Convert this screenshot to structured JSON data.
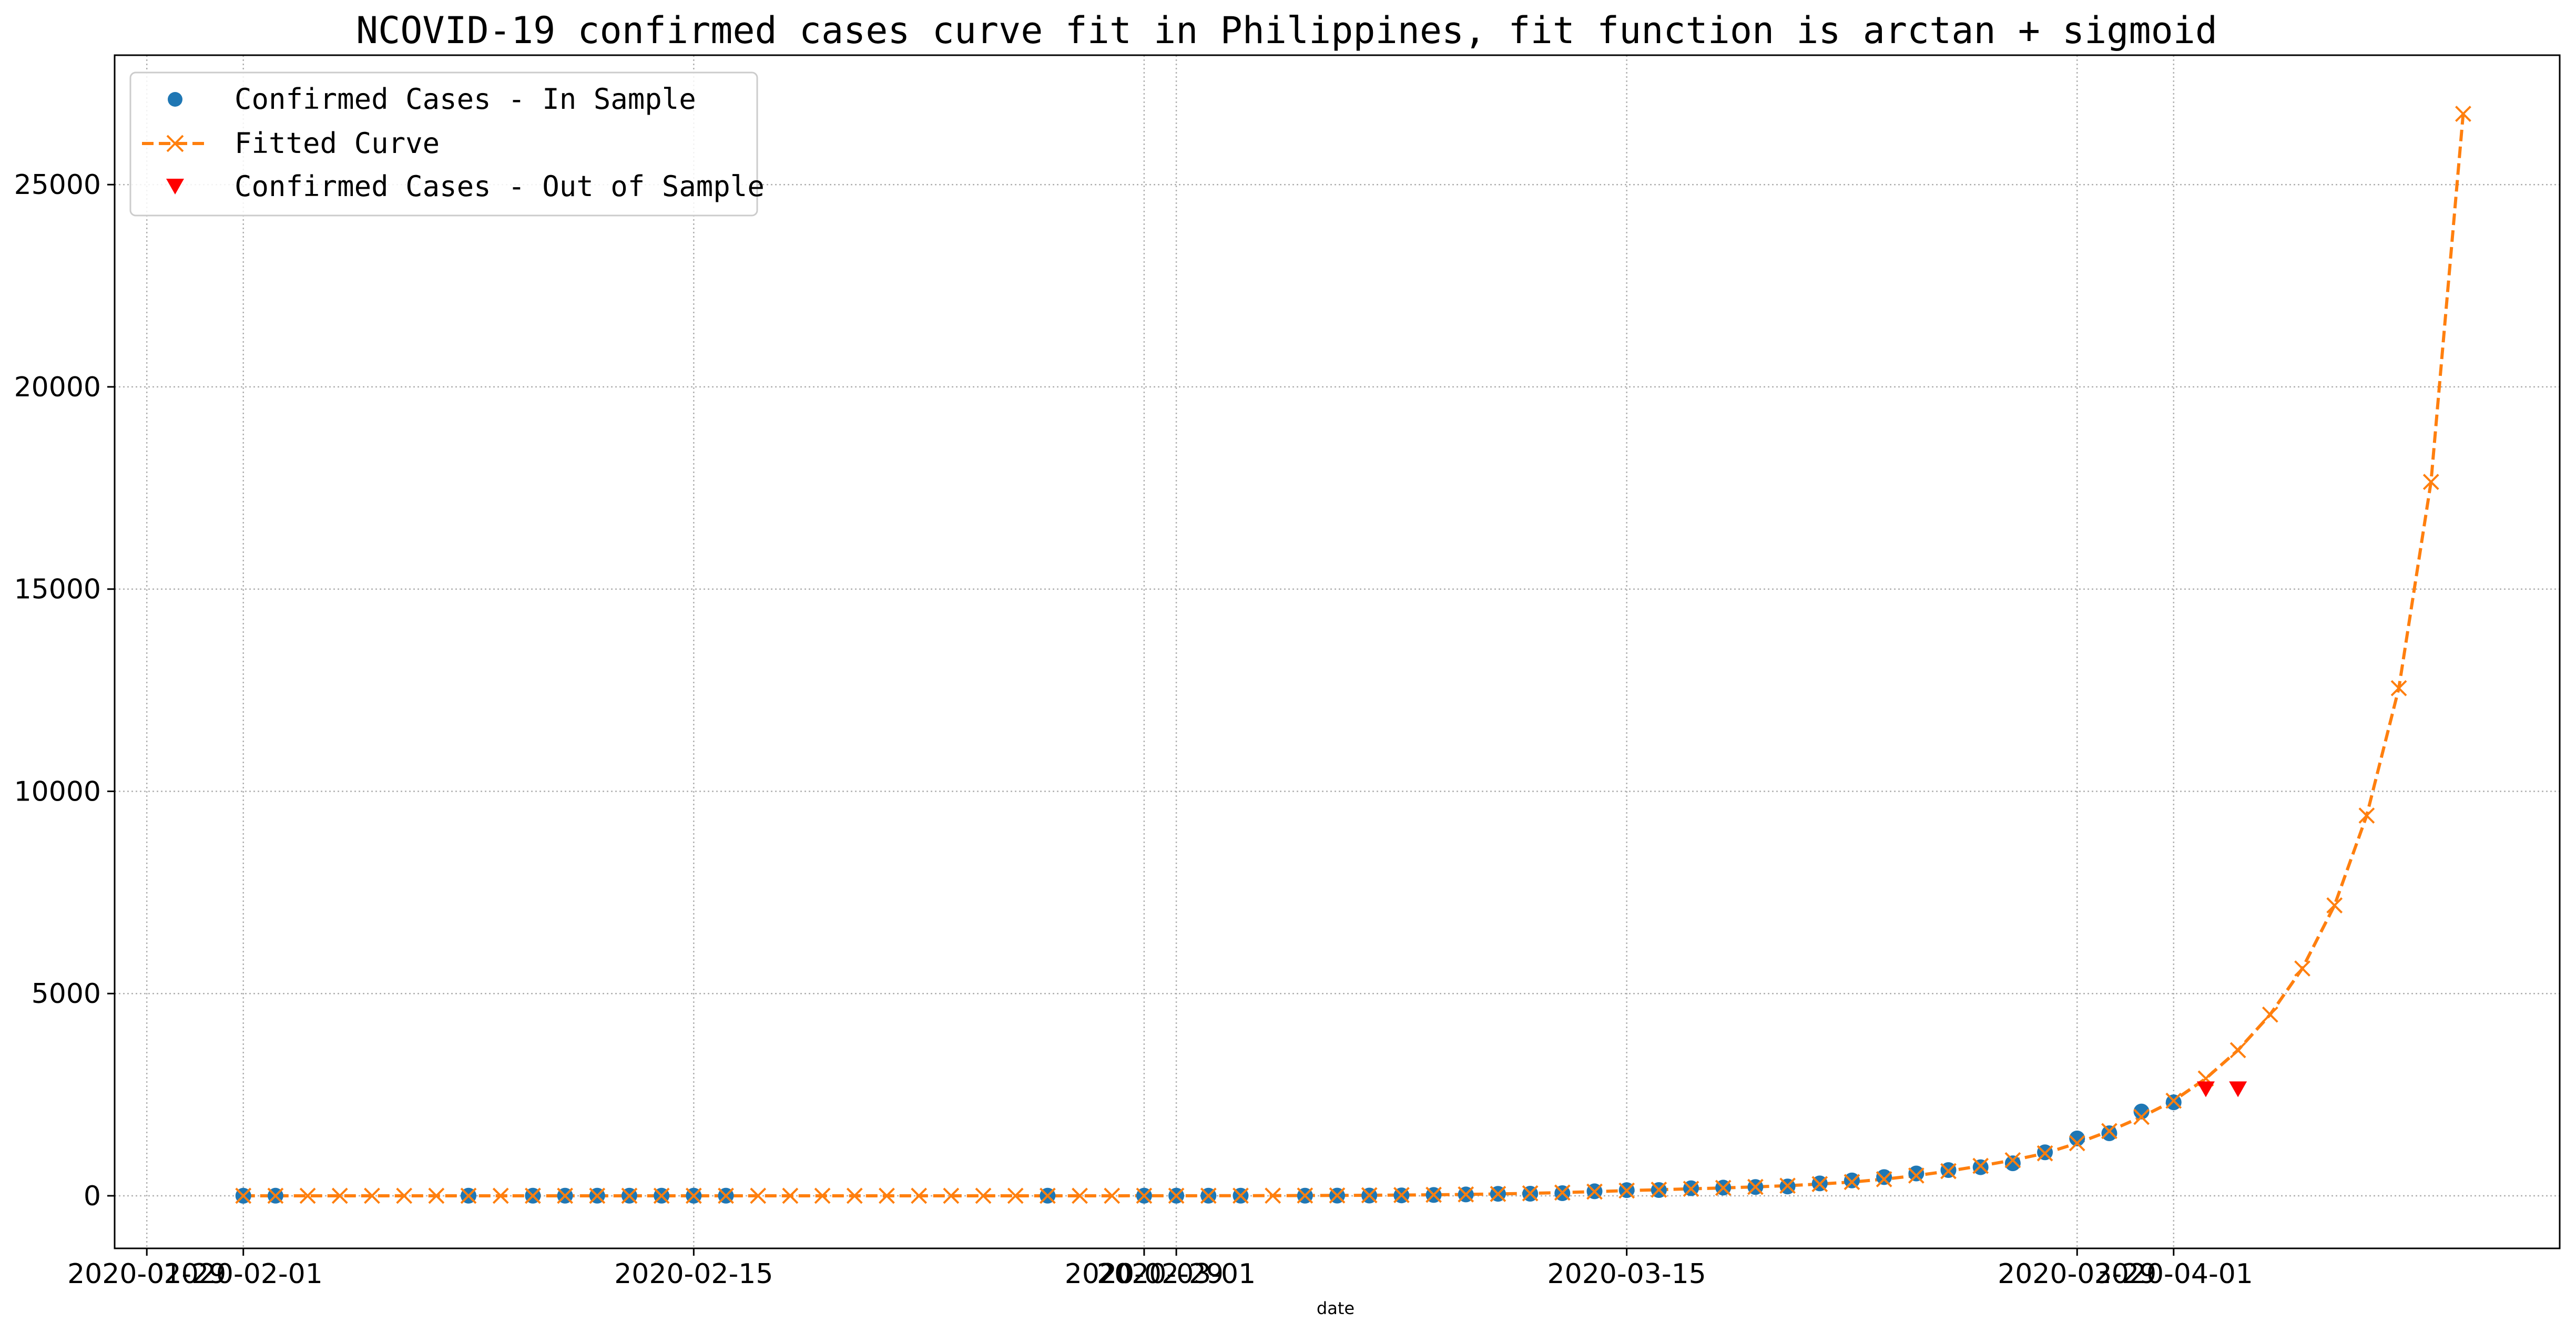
{
  "chart_data": {
    "type": "line",
    "title": "NCOVID-19 confirmed cases curve fit in Philippines, fit function is arctan + sigmoid",
    "xlabel": "date",
    "ylabel": "",
    "grid": true,
    "legend_position": "top-left",
    "xlim": [
      "2020-01-28",
      "2020-04-13"
    ],
    "ylim": [
      -1300,
      28200
    ],
    "x_ticks": [
      "2020-01-29",
      "2020-02-01",
      "2020-02-15",
      "2020-02-29",
      "2020-03-01",
      "2020-03-15",
      "2020-03-29",
      "2020-04-01"
    ],
    "y_ticks": [
      0,
      5000,
      10000,
      15000,
      20000,
      25000
    ],
    "colors": {
      "in_sample": "#1f77b4",
      "fitted": "#ff7f0e",
      "out_of_sample": "#ff0000",
      "grid": "#b0b0b0"
    },
    "series": [
      {
        "name": "Confirmed Cases - In Sample",
        "marker": "circle",
        "points": [
          {
            "x": "2020-02-01",
            "y": 1
          },
          {
            "x": "2020-02-02",
            "y": 2
          },
          {
            "x": "2020-02-08",
            "y": 3
          },
          {
            "x": "2020-02-10",
            "y": 3
          },
          {
            "x": "2020-02-11",
            "y": 3
          },
          {
            "x": "2020-02-12",
            "y": 3
          },
          {
            "x": "2020-02-13",
            "y": 3
          },
          {
            "x": "2020-02-14",
            "y": 3
          },
          {
            "x": "2020-02-15",
            "y": 3
          },
          {
            "x": "2020-02-16",
            "y": 3
          },
          {
            "x": "2020-02-26",
            "y": 3
          },
          {
            "x": "2020-02-29",
            "y": 3
          },
          {
            "x": "2020-03-01",
            "y": 3
          },
          {
            "x": "2020-03-02",
            "y": 3
          },
          {
            "x": "2020-03-03",
            "y": 3
          },
          {
            "x": "2020-03-05",
            "y": 3
          },
          {
            "x": "2020-03-06",
            "y": 5
          },
          {
            "x": "2020-03-07",
            "y": 6
          },
          {
            "x": "2020-03-08",
            "y": 10
          },
          {
            "x": "2020-03-09",
            "y": 20
          },
          {
            "x": "2020-03-10",
            "y": 33
          },
          {
            "x": "2020-03-11",
            "y": 49
          },
          {
            "x": "2020-03-12",
            "y": 52
          },
          {
            "x": "2020-03-13",
            "y": 64
          },
          {
            "x": "2020-03-14",
            "y": 111
          },
          {
            "x": "2020-03-15",
            "y": 140
          },
          {
            "x": "2020-03-16",
            "y": 142
          },
          {
            "x": "2020-03-17",
            "y": 187
          },
          {
            "x": "2020-03-18",
            "y": 202
          },
          {
            "x": "2020-03-19",
            "y": 217
          },
          {
            "x": "2020-03-20",
            "y": 230
          },
          {
            "x": "2020-03-21",
            "y": 307
          },
          {
            "x": "2020-03-22",
            "y": 380
          },
          {
            "x": "2020-03-23",
            "y": 462
          },
          {
            "x": "2020-03-24",
            "y": 552
          },
          {
            "x": "2020-03-25",
            "y": 636
          },
          {
            "x": "2020-03-26",
            "y": 707
          },
          {
            "x": "2020-03-27",
            "y": 803
          },
          {
            "x": "2020-03-28",
            "y": 1075
          },
          {
            "x": "2020-03-29",
            "y": 1418
          },
          {
            "x": "2020-03-30",
            "y": 1546
          },
          {
            "x": "2020-03-31",
            "y": 2084
          },
          {
            "x": "2020-04-01",
            "y": 2311
          }
        ]
      },
      {
        "name": "Fitted Curve",
        "marker": "x",
        "line_style": "dashed",
        "points": [
          {
            "x": "2020-02-01",
            "y": 0
          },
          {
            "x": "2020-02-02",
            "y": 0
          },
          {
            "x": "2020-02-03",
            "y": 0
          },
          {
            "x": "2020-02-04",
            "y": 0
          },
          {
            "x": "2020-02-05",
            "y": 0
          },
          {
            "x": "2020-02-06",
            "y": 0
          },
          {
            "x": "2020-02-07",
            "y": 0
          },
          {
            "x": "2020-02-08",
            "y": 0
          },
          {
            "x": "2020-02-09",
            "y": 0
          },
          {
            "x": "2020-02-10",
            "y": 0
          },
          {
            "x": "2020-02-11",
            "y": 0
          },
          {
            "x": "2020-02-12",
            "y": 0
          },
          {
            "x": "2020-02-13",
            "y": 0
          },
          {
            "x": "2020-02-14",
            "y": 0
          },
          {
            "x": "2020-02-15",
            "y": 0
          },
          {
            "x": "2020-02-16",
            "y": 0
          },
          {
            "x": "2020-02-17",
            "y": 0
          },
          {
            "x": "2020-02-18",
            "y": 0
          },
          {
            "x": "2020-02-19",
            "y": 0
          },
          {
            "x": "2020-02-20",
            "y": 0
          },
          {
            "x": "2020-02-21",
            "y": 0
          },
          {
            "x": "2020-02-22",
            "y": 0
          },
          {
            "x": "2020-02-23",
            "y": 0
          },
          {
            "x": "2020-02-24",
            "y": 0
          },
          {
            "x": "2020-02-25",
            "y": 0
          },
          {
            "x": "2020-02-26",
            "y": 0
          },
          {
            "x": "2020-02-27",
            "y": 0
          },
          {
            "x": "2020-02-28",
            "y": 0
          },
          {
            "x": "2020-02-29",
            "y": 1
          },
          {
            "x": "2020-03-01",
            "y": 1
          },
          {
            "x": "2020-03-02",
            "y": 2
          },
          {
            "x": "2020-03-03",
            "y": 3
          },
          {
            "x": "2020-03-04",
            "y": 4
          },
          {
            "x": "2020-03-05",
            "y": 6
          },
          {
            "x": "2020-03-06",
            "y": 9
          },
          {
            "x": "2020-03-07",
            "y": 13
          },
          {
            "x": "2020-03-08",
            "y": 18
          },
          {
            "x": "2020-03-09",
            "y": 25
          },
          {
            "x": "2020-03-10",
            "y": 34
          },
          {
            "x": "2020-03-11",
            "y": 46
          },
          {
            "x": "2020-03-12",
            "y": 61
          },
          {
            "x": "2020-03-13",
            "y": 80
          },
          {
            "x": "2020-03-14",
            "y": 103
          },
          {
            "x": "2020-03-15",
            "y": 128
          },
          {
            "x": "2020-03-16",
            "y": 150
          },
          {
            "x": "2020-03-17",
            "y": 172
          },
          {
            "x": "2020-03-18",
            "y": 195
          },
          {
            "x": "2020-03-19",
            "y": 220
          },
          {
            "x": "2020-03-20",
            "y": 250
          },
          {
            "x": "2020-03-21",
            "y": 290
          },
          {
            "x": "2020-03-22",
            "y": 340
          },
          {
            "x": "2020-03-23",
            "y": 410
          },
          {
            "x": "2020-03-24",
            "y": 500
          },
          {
            "x": "2020-03-25",
            "y": 610
          },
          {
            "x": "2020-03-26",
            "y": 740
          },
          {
            "x": "2020-03-27",
            "y": 880
          },
          {
            "x": "2020-03-28",
            "y": 1050
          },
          {
            "x": "2020-03-29",
            "y": 1300
          },
          {
            "x": "2020-03-30",
            "y": 1600
          },
          {
            "x": "2020-03-31",
            "y": 1950
          },
          {
            "x": "2020-04-01",
            "y": 2350
          },
          {
            "x": "2020-04-02",
            "y": 2900
          },
          {
            "x": "2020-04-03",
            "y": 3600
          },
          {
            "x": "2020-04-04",
            "y": 4480
          },
          {
            "x": "2020-04-05",
            "y": 5620
          },
          {
            "x": "2020-04-06",
            "y": 7180
          },
          {
            "x": "2020-04-07",
            "y": 9400
          },
          {
            "x": "2020-04-08",
            "y": 12550
          },
          {
            "x": "2020-04-09",
            "y": 17650
          },
          {
            "x": "2020-04-10",
            "y": 26750
          }
        ]
      },
      {
        "name": "Confirmed Cases - Out of Sample",
        "marker": "triangle-down",
        "points": [
          {
            "x": "2020-04-02",
            "y": 2633
          },
          {
            "x": "2020-04-03",
            "y": 2633
          }
        ]
      }
    ]
  }
}
